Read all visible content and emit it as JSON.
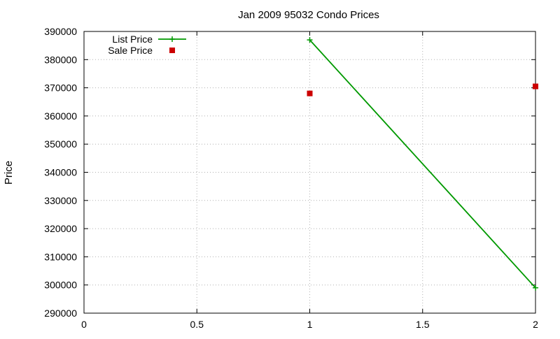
{
  "chart_data": {
    "type": "line",
    "title": "Jan 2009 95032 Condo Prices",
    "xlabel": "",
    "ylabel": "Price",
    "xlim": [
      0,
      2
    ],
    "ylim": [
      290000,
      390000
    ],
    "x_ticks": [
      "0",
      "0.5",
      "1",
      "1.5",
      "2"
    ],
    "y_ticks": [
      "290000",
      "300000",
      "310000",
      "320000",
      "330000",
      "340000",
      "350000",
      "360000",
      "370000",
      "380000",
      "390000"
    ],
    "grid": true,
    "legend_position": "top-left",
    "series": [
      {
        "name": "List Price",
        "style": "line+cross",
        "color": "#009900",
        "points": [
          {
            "x": 1,
            "y": 387000
          },
          {
            "x": 2,
            "y": 299000
          }
        ]
      },
      {
        "name": "Sale Price",
        "style": "square",
        "color": "#cc0000",
        "points": [
          {
            "x": 1,
            "y": 368000
          },
          {
            "x": 2,
            "y": 370500
          }
        ]
      }
    ]
  }
}
